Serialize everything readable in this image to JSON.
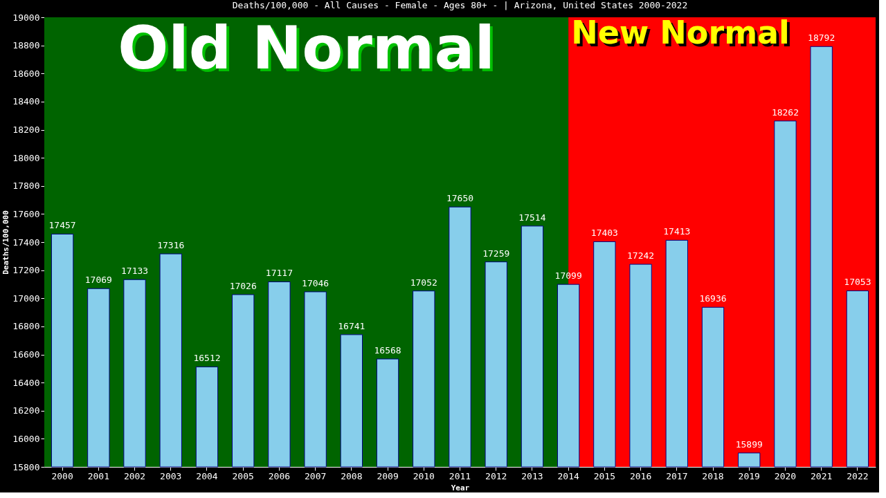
{
  "chart_data": {
    "type": "bar",
    "title": "Deaths/100,000 - All Causes - Female - Ages 80+ -  | Arizona, United States 2000-2022",
    "xlabel": "Year",
    "ylabel": "Deaths/100,000",
    "categories": [
      "2000",
      "2001",
      "2002",
      "2003",
      "2004",
      "2005",
      "2006",
      "2007",
      "2008",
      "2009",
      "2010",
      "2011",
      "2012",
      "2013",
      "2014",
      "2015",
      "2016",
      "2017",
      "2018",
      "2019",
      "2020",
      "2021",
      "2022"
    ],
    "values": [
      17457,
      17069,
      17133,
      17316,
      16512,
      17026,
      17117,
      17046,
      16741,
      16568,
      17052,
      17650,
      17259,
      17514,
      17099,
      17403,
      17242,
      17413,
      16936,
      15899,
      18262,
      18792,
      17053
    ],
    "color": "#87ceeb",
    "data_labels": true,
    "ylim": [
      15800,
      19000
    ],
    "yticks": [
      15800,
      16000,
      16200,
      16400,
      16600,
      16800,
      17000,
      17200,
      17400,
      17600,
      17800,
      18000,
      18200,
      18400,
      18600,
      18800,
      19000
    ],
    "grid": false,
    "bands": [
      {
        "axis": "x",
        "from": "2000",
        "to": "2014",
        "label": "Old Normal",
        "color": "#006400"
      },
      {
        "axis": "x",
        "from": "2014",
        "to": "2022",
        "label": "New Normal",
        "color": "#ff0000"
      }
    ]
  }
}
